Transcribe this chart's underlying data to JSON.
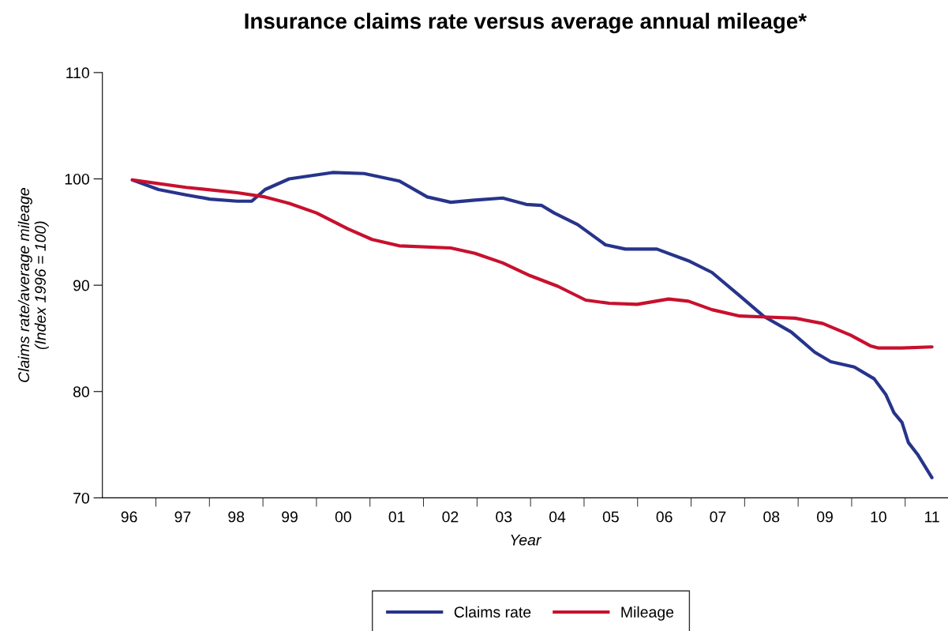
{
  "chart_data": {
    "type": "line",
    "title": "Insurance claims rate versus average annual mileage*",
    "xlabel": "Year",
    "ylabel": "Claims rate/average mileage\n(Index 1996 = 100)",
    "xlim": [
      1995.5,
      2011.3
    ],
    "ylim": [
      70,
      110
    ],
    "yticks": [
      70,
      80,
      90,
      100,
      110
    ],
    "xticks": [
      {
        "value": 1996,
        "label": "96"
      },
      {
        "value": 1997,
        "label": "97"
      },
      {
        "value": 1998,
        "label": "98"
      },
      {
        "value": 1999,
        "label": "99"
      },
      {
        "value": 2000,
        "label": "00"
      },
      {
        "value": 2001,
        "label": "01"
      },
      {
        "value": 2002,
        "label": "02"
      },
      {
        "value": 2003,
        "label": "03"
      },
      {
        "value": 2004,
        "label": "04"
      },
      {
        "value": 2005,
        "label": "05"
      },
      {
        "value": 2006,
        "label": "06"
      },
      {
        "value": 2007,
        "label": "07"
      },
      {
        "value": 2008,
        "label": "08"
      },
      {
        "value": 2009,
        "label": "09"
      },
      {
        "value": 2010,
        "label": "10"
      },
      {
        "value": 2011,
        "label": "11"
      },
      {
        "value": 1996.5,
        "label": null
      },
      {
        "value": 1997.5,
        "label": null
      },
      {
        "value": 1998.5,
        "label": null
      },
      {
        "value": 1999.5,
        "label": null
      },
      {
        "value": 2000.5,
        "label": null
      },
      {
        "value": 2001.5,
        "label": null
      },
      {
        "value": 2002.5,
        "label": null
      },
      {
        "value": 2003.5,
        "label": null
      },
      {
        "value": 2004.5,
        "label": null
      },
      {
        "value": 2005.5,
        "label": null
      },
      {
        "value": 2006.5,
        "label": null
      },
      {
        "value": 2007.5,
        "label": null
      },
      {
        "value": 2008.5,
        "label": null
      },
      {
        "value": 2009.5,
        "label": null
      },
      {
        "value": 2010.5,
        "label": null
      }
    ],
    "grid": false,
    "legend": "bottom",
    "marker": "none",
    "line_style": "solid",
    "series": [
      {
        "name": "Claims rate",
        "color": "#27348b",
        "x": [
          1996.06,
          1996.55,
          1997.06,
          1997.51,
          1998.02,
          1998.29,
          1998.54,
          1998.99,
          1999.8,
          2000.39,
          2001.05,
          2001.57,
          2002.01,
          2002.46,
          2002.98,
          2003.42,
          2003.71,
          2003.94,
          2004.38,
          2004.9,
          2005.27,
          2005.86,
          2006.45,
          2006.89,
          2007.41,
          2007.85,
          2008.37,
          2008.81,
          2009.11,
          2009.55,
          2009.92,
          2010.14,
          2010.29,
          2010.44,
          2010.56,
          2010.73,
          2011.0
        ],
        "values": [
          99.9,
          99.0,
          98.5,
          98.1,
          97.9,
          97.9,
          99.0,
          100.0,
          100.6,
          100.5,
          99.8,
          98.3,
          97.8,
          98.0,
          98.2,
          97.6,
          97.5,
          96.8,
          95.7,
          93.8,
          93.4,
          93.4,
          92.3,
          91.2,
          89.0,
          87.1,
          85.6,
          83.7,
          82.8,
          82.3,
          81.2,
          79.7,
          78.0,
          77.1,
          75.2,
          74.1,
          71.9
        ]
      },
      {
        "name": "Mileage",
        "color": "#c8102e",
        "x": [
          1996.06,
          1997.06,
          1998.02,
          1998.54,
          1998.99,
          1999.5,
          2000.09,
          2000.54,
          2001.05,
          2002.01,
          2002.46,
          2002.98,
          2003.49,
          2004.01,
          2004.53,
          2004.97,
          2005.49,
          2006.08,
          2006.45,
          2006.89,
          2007.41,
          2007.93,
          2008.44,
          2008.96,
          2009.48,
          2009.85,
          2009.99,
          2010.44,
          2011.0
        ],
        "values": [
          99.9,
          99.2,
          98.7,
          98.3,
          97.7,
          96.8,
          95.3,
          94.3,
          93.7,
          93.5,
          93.0,
          92.1,
          90.9,
          89.9,
          88.6,
          88.3,
          88.2,
          88.7,
          88.5,
          87.7,
          87.1,
          87.0,
          86.9,
          86.4,
          85.3,
          84.3,
          84.1,
          84.1,
          84.2
        ]
      }
    ]
  }
}
